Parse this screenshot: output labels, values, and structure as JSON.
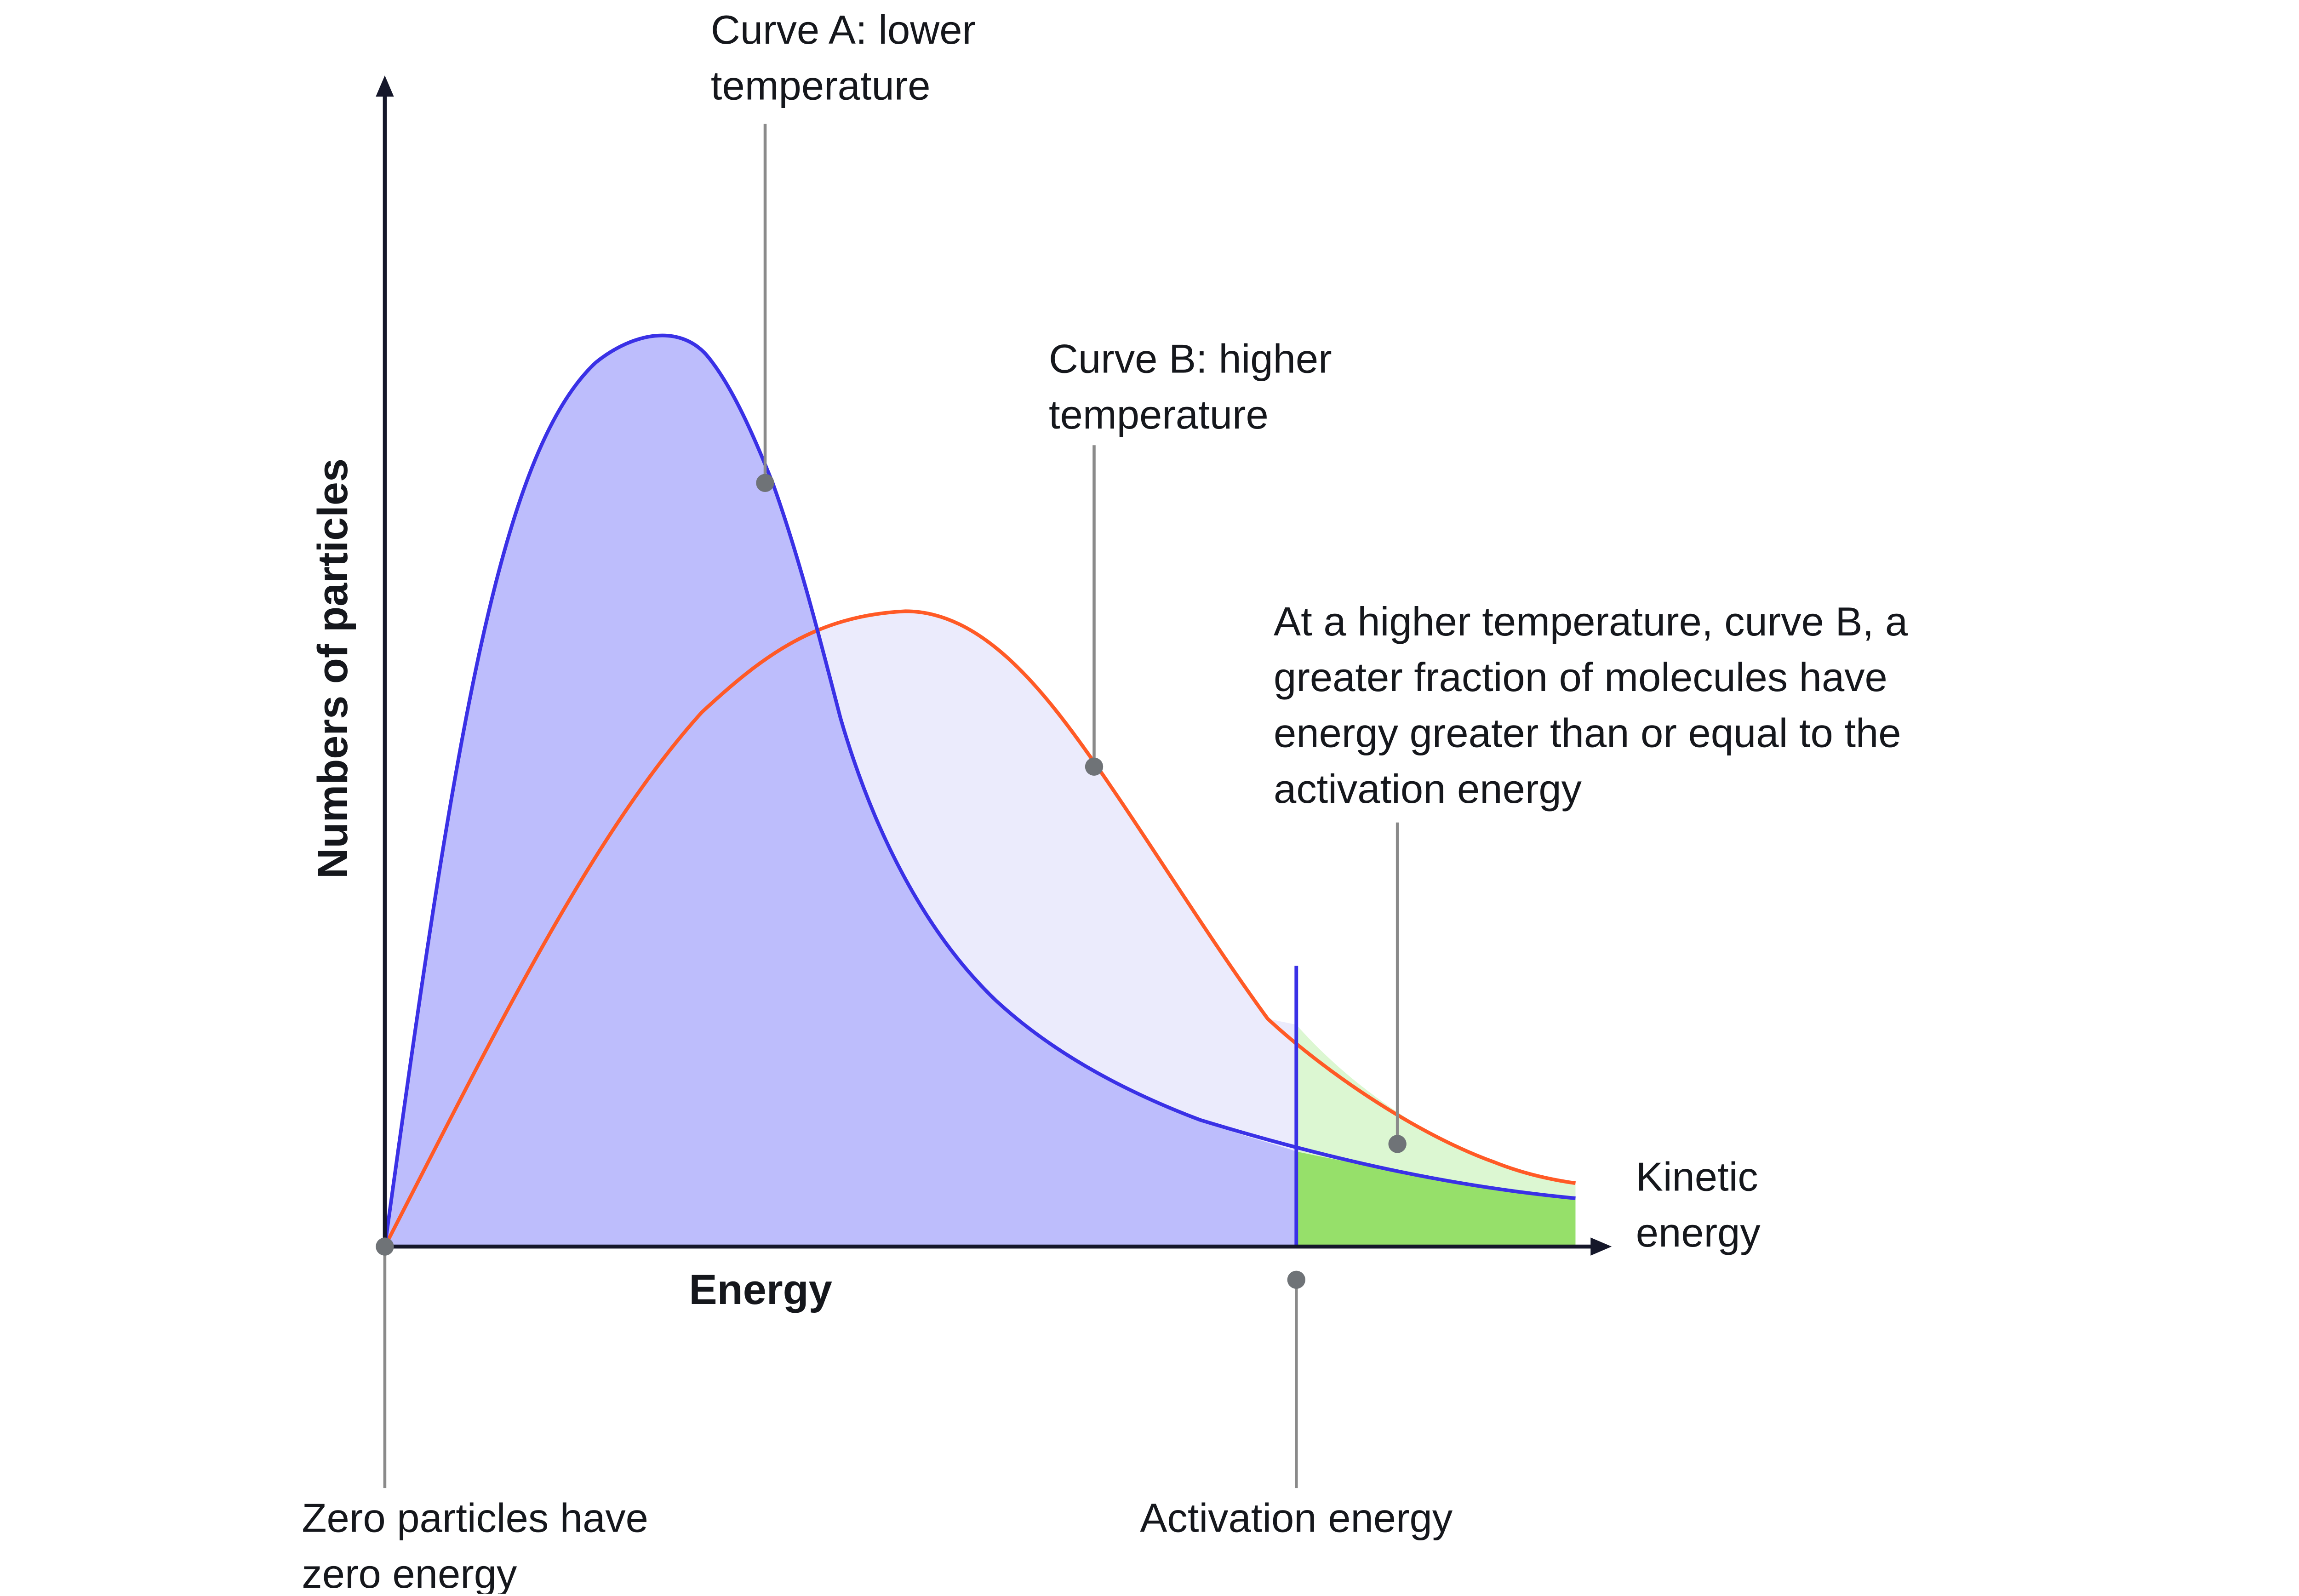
{
  "diagram": {
    "axes": {
      "y_title": "Numbers of particles",
      "x_title": "Energy",
      "x_end_label": [
        "Kinetic",
        "energy"
      ]
    },
    "curves": {
      "a": {
        "label": [
          "Curve A: lower",
          "temperature"
        ],
        "color": "#3a31e6",
        "fill": "#bdbdfc"
      },
      "b": {
        "label": [
          "Curve B: higher",
          "temperature"
        ],
        "color": "#ff5a26",
        "fill": "#ebebfc"
      }
    },
    "callouts": {
      "fraction": [
        "At a higher temperature, curve B, a",
        "greater fraction of molecules have",
        "energy greater than or equal to the",
        "activation energy"
      ],
      "zero": [
        "Zero particles have",
        "zero energy"
      ],
      "activation": "Activation energy"
    },
    "colors": {
      "axis": "#15172a",
      "leader": "#8a8a8a",
      "tail_light_green": "#dcf7d2",
      "tail_green": "#96e06a",
      "activation_line": "#3a31e6"
    }
  }
}
